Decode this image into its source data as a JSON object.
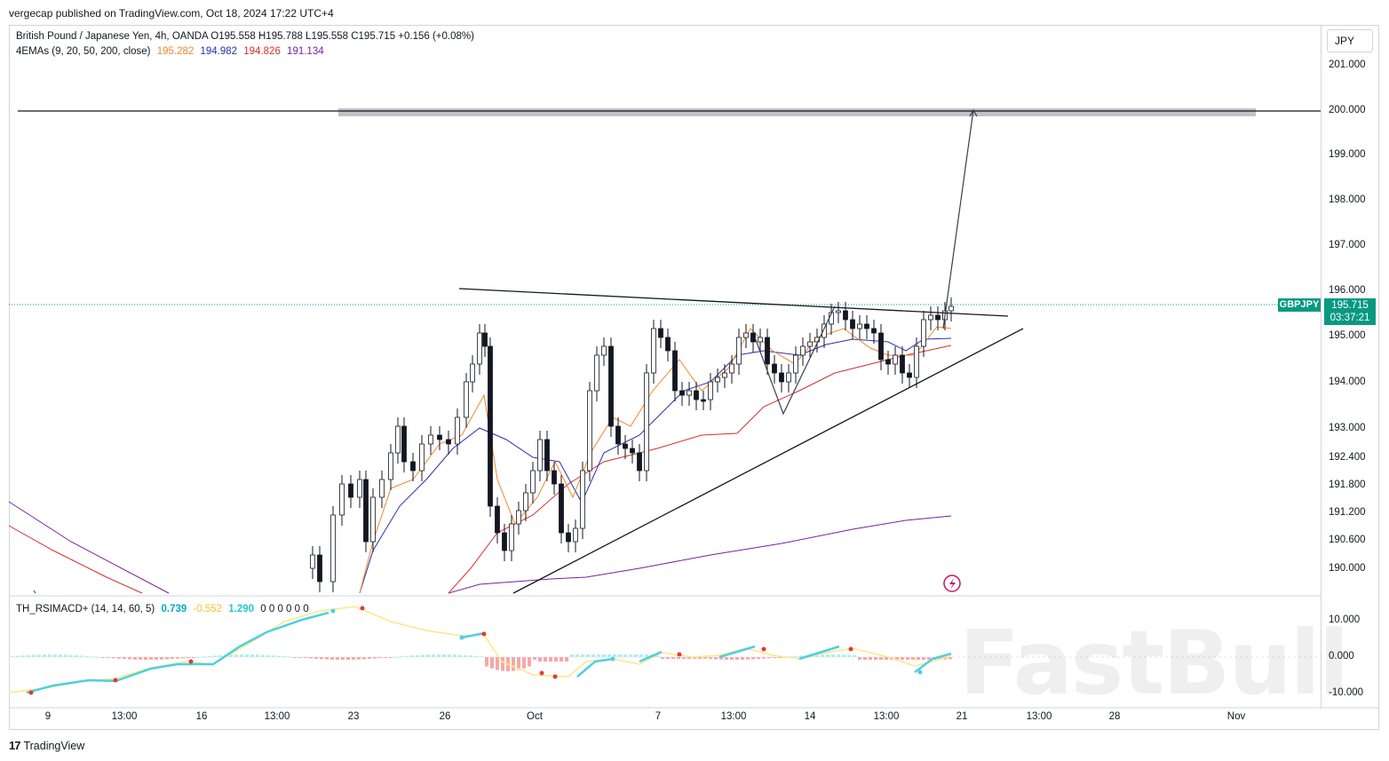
{
  "header": {
    "published": "vergecap published on TradingView.com, Oct 18, 2024 17:22 UTC+4"
  },
  "legend": {
    "line1": "British Pound / Japanese Yen, 4h, OANDA  O195.558  H195.788  L195.558  C195.715  +0.156 (+0.08%)",
    "ema_label": "4EMAs (9, 20, 50, 200, close)",
    "ema_values": [
      "195.282",
      "194.982",
      "194.826",
      "191.134"
    ],
    "ema_colors": [
      "#f0872a",
      "#2d2db0",
      "#d32f2f",
      "#7b1fa2"
    ],
    "ind_label": "TH_RSIMACD+ (14, 14, 60, 5)",
    "ind_values": [
      "0.739",
      "-0.552",
      "1.290"
    ],
    "ind_colors": [
      "#00bcd4",
      "#fdd835",
      "#26c6da"
    ],
    "ind_zeros": "0  0  0  0  0  0"
  },
  "price_axis": {
    "currency": "JPY",
    "ticks": [
      "201.000",
      "200.000",
      "199.000",
      "198.000",
      "197.000",
      "196.000",
      "195.000",
      "194.000",
      "193.000",
      "192.400",
      "191.800",
      "191.200",
      "190.600",
      "190.000"
    ],
    "indicator_ticks": [
      "10.000",
      "0.000",
      "-10.000"
    ]
  },
  "time_axis": {
    "labels": [
      "9",
      "13:00",
      "16",
      "13:00",
      "23",
      "26",
      "Oct",
      "7",
      "13:00",
      "14",
      "13:00",
      "21",
      "13:00",
      "28",
      "Nov"
    ]
  },
  "badge": {
    "symbol": "GBPJPY",
    "price": "195.715",
    "countdown": "03:37:21"
  },
  "footer": {
    "brand": "TradingView"
  },
  "watermark": "FastBull",
  "chart_data": {
    "type": "candlestick",
    "symbol": "GBPJPY",
    "timeframe": "4h",
    "ohlc_last": {
      "open": 195.558,
      "high": 195.788,
      "low": 195.558,
      "close": 195.715
    },
    "key_levels": {
      "target_zone": [
        199.9,
        200.1
      ],
      "horizontal_line": 200.0
    },
    "ema_last": {
      "ema9": 195.282,
      "ema20": 194.982,
      "ema50": 194.826,
      "ema200": 191.134
    }
  }
}
